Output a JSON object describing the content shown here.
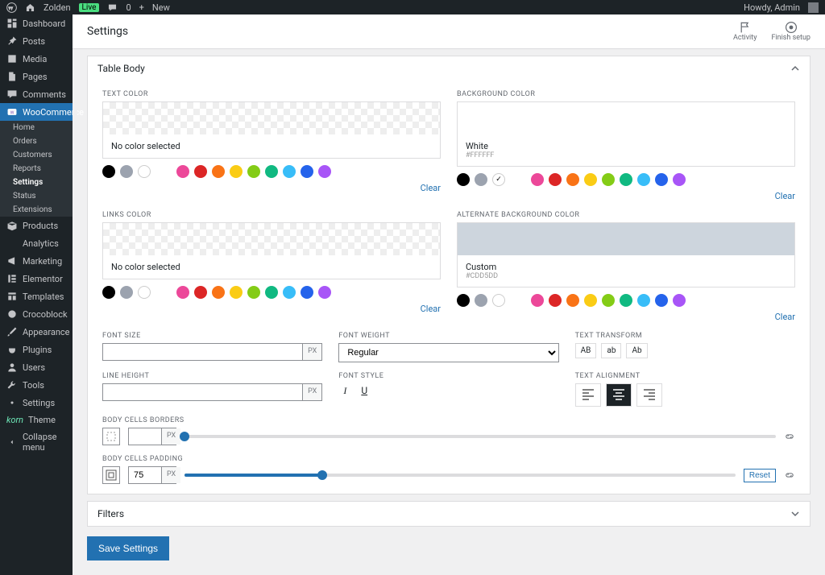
{
  "adminbar": {
    "site_name": "Zolden",
    "live_badge": "Live",
    "comment_count": "0",
    "new_label": "New",
    "howdy": "Howdy, Admin"
  },
  "sidebar": {
    "items": [
      {
        "label": "Dashboard",
        "icon": "dashboard"
      },
      {
        "label": "Posts",
        "icon": "pin"
      },
      {
        "label": "Media",
        "icon": "media"
      },
      {
        "label": "Pages",
        "icon": "page"
      },
      {
        "label": "Comments",
        "icon": "comment"
      },
      {
        "label": "WooCommerce",
        "icon": "woo",
        "current": true
      },
      {
        "label": "Products",
        "icon": "box"
      },
      {
        "label": "Analytics",
        "icon": "chart"
      },
      {
        "label": "Marketing",
        "icon": "megaphone"
      },
      {
        "label": "Elementor",
        "icon": "elementor"
      },
      {
        "label": "Templates",
        "icon": "templates"
      },
      {
        "label": "Crocoblock",
        "icon": "croco"
      },
      {
        "label": "Appearance",
        "icon": "brush"
      },
      {
        "label": "Plugins",
        "icon": "plug"
      },
      {
        "label": "Users",
        "icon": "user"
      },
      {
        "label": "Tools",
        "icon": "wrench"
      },
      {
        "label": "Settings",
        "icon": "settings"
      },
      {
        "label": "Theme",
        "icon": "korn"
      },
      {
        "label": "Collapse menu",
        "icon": "collapse"
      }
    ],
    "woo_sub": [
      "Home",
      "Orders",
      "Customers",
      "Reports",
      "Settings",
      "Status",
      "Extensions"
    ],
    "woo_sub_active": "Settings"
  },
  "page": {
    "title": "Settings",
    "actions": [
      {
        "label": "Activity",
        "icon": "activity"
      },
      {
        "label": "Finish setup",
        "icon": "setup"
      }
    ]
  },
  "section": {
    "title": "Table Body",
    "text_color_label": "TEXT COLOR",
    "bg_color_label": "BACKGROUND COLOR",
    "links_color_label": "LINKS COLOR",
    "alt_bg_label": "ALTERNATE BACKGROUND COLOR",
    "no_color": "No color selected",
    "white_label": "White",
    "white_hex": "#FFFFFF",
    "custom_label": "Custom",
    "custom_hex": "#CDD5DD",
    "clear": "Clear",
    "font_size_label": "FONT SIZE",
    "font_weight_label": "FONT WEIGHT",
    "font_weight_value": "Regular",
    "text_transform_label": "TEXT TRANSFORM",
    "transform_options": [
      "AB",
      "ab",
      "Ab"
    ],
    "line_height_label": "LINE HEIGHT",
    "font_style_label": "FONT STYLE",
    "text_align_label": "TEXT ALIGNMENT",
    "borders_label": "BODY CELLS BORDERS",
    "padding_label": "BODY CELLS PADDING",
    "padding_value": "75",
    "reset": "Reset",
    "px": "PX"
  },
  "swatches": {
    "group1": [
      "#000000",
      "#9ca3af",
      "#ffffff"
    ],
    "group2": [
      "#ec4899",
      "#dc2626",
      "#f97316",
      "#facc15",
      "#84cc16",
      "#10b981",
      "#38bdf8",
      "#2563eb",
      "#a855f7"
    ]
  },
  "alt_bg_color": "#CDD5DD",
  "filters_section": "Filters",
  "save_button": "Save Settings"
}
